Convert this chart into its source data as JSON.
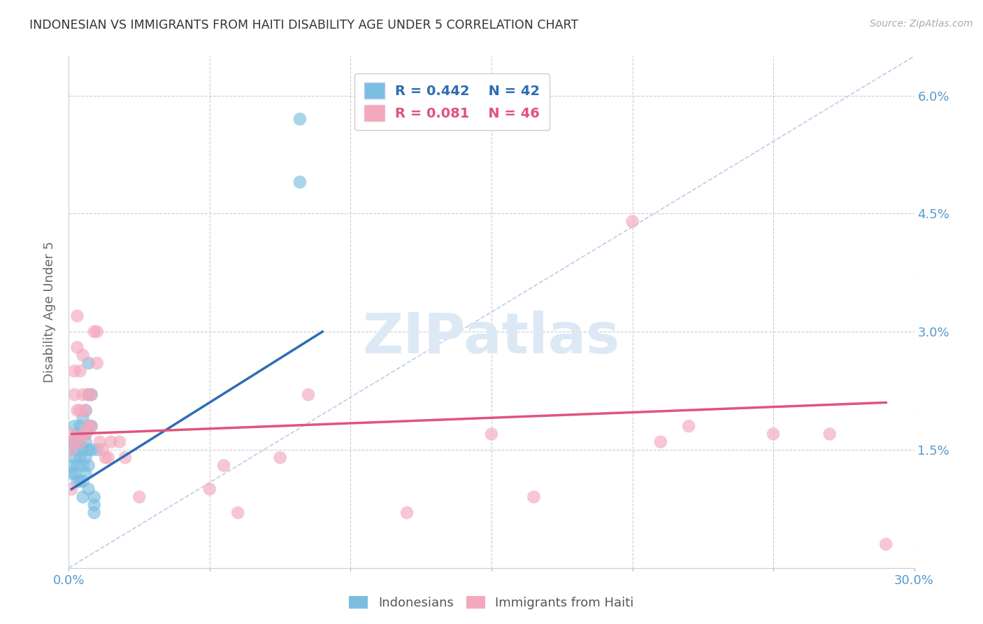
{
  "title": "INDONESIAN VS IMMIGRANTS FROM HAITI DISABILITY AGE UNDER 5 CORRELATION CHART",
  "source": "Source: ZipAtlas.com",
  "ylabel": "Disability Age Under 5",
  "xlim": [
    0.0,
    0.3
  ],
  "ylim": [
    0.0,
    0.065
  ],
  "yticks": [
    0.0,
    0.015,
    0.03,
    0.045,
    0.06
  ],
  "ytick_labels": [
    "",
    "1.5%",
    "3.0%",
    "4.5%",
    "6.0%"
  ],
  "xticks": [
    0.0,
    0.05,
    0.1,
    0.15,
    0.2,
    0.25,
    0.3
  ],
  "legend_R1": "R = 0.442",
  "legend_N1": "N = 42",
  "legend_R2": "R = 0.081",
  "legend_N2": "N = 46",
  "color_blue": "#7bbde0",
  "color_pink": "#f4a8be",
  "color_line_blue": "#2e6db4",
  "color_line_pink": "#e0547a",
  "color_diag": "#b8cfe8",
  "title_color": "#333333",
  "axis_label_color": "#666666",
  "tick_color_right": "#5599cc",
  "background_color": "#ffffff",
  "indonesian_x": [
    0.001,
    0.001,
    0.001,
    0.001,
    0.002,
    0.002,
    0.002,
    0.002,
    0.003,
    0.003,
    0.003,
    0.003,
    0.004,
    0.004,
    0.004,
    0.004,
    0.005,
    0.005,
    0.005,
    0.005,
    0.005,
    0.005,
    0.006,
    0.006,
    0.006,
    0.006,
    0.006,
    0.007,
    0.007,
    0.007,
    0.007,
    0.007,
    0.007,
    0.008,
    0.008,
    0.008,
    0.009,
    0.009,
    0.009,
    0.01,
    0.082,
    0.082
  ],
  "indonesian_y": [
    0.016,
    0.015,
    0.013,
    0.012,
    0.018,
    0.016,
    0.014,
    0.012,
    0.017,
    0.015,
    0.013,
    0.011,
    0.018,
    0.016,
    0.014,
    0.011,
    0.019,
    0.017,
    0.015,
    0.013,
    0.011,
    0.009,
    0.02,
    0.017,
    0.016,
    0.014,
    0.012,
    0.026,
    0.022,
    0.018,
    0.015,
    0.013,
    0.01,
    0.022,
    0.018,
    0.015,
    0.009,
    0.008,
    0.007,
    0.015,
    0.057,
    0.049
  ],
  "haitian_x": [
    0.001,
    0.001,
    0.001,
    0.002,
    0.002,
    0.002,
    0.003,
    0.003,
    0.003,
    0.004,
    0.004,
    0.004,
    0.005,
    0.005,
    0.005,
    0.006,
    0.006,
    0.007,
    0.007,
    0.008,
    0.008,
    0.009,
    0.01,
    0.01,
    0.011,
    0.012,
    0.013,
    0.014,
    0.015,
    0.018,
    0.02,
    0.025,
    0.05,
    0.055,
    0.06,
    0.075,
    0.085,
    0.12,
    0.15,
    0.165,
    0.2,
    0.21,
    0.22,
    0.25,
    0.27,
    0.29
  ],
  "haitian_y": [
    0.017,
    0.015,
    0.01,
    0.025,
    0.022,
    0.016,
    0.032,
    0.028,
    0.02,
    0.025,
    0.02,
    0.016,
    0.027,
    0.022,
    0.017,
    0.02,
    0.017,
    0.022,
    0.018,
    0.022,
    0.018,
    0.03,
    0.03,
    0.026,
    0.016,
    0.015,
    0.014,
    0.014,
    0.016,
    0.016,
    0.014,
    0.009,
    0.01,
    0.013,
    0.007,
    0.014,
    0.022,
    0.007,
    0.017,
    0.009,
    0.044,
    0.016,
    0.018,
    0.017,
    0.017,
    0.003
  ],
  "blue_line_x": [
    0.001,
    0.09
  ],
  "blue_line_y": [
    0.01,
    0.03
  ],
  "pink_line_x": [
    0.001,
    0.29
  ],
  "pink_line_y": [
    0.017,
    0.021
  ]
}
